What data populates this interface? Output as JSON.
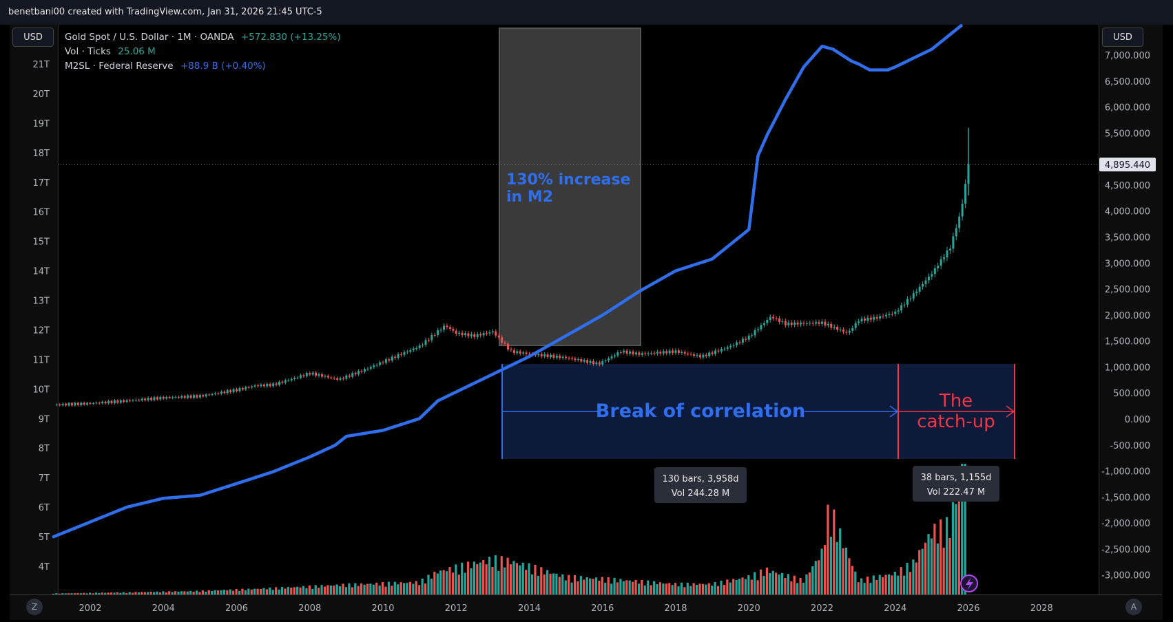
{
  "header": {
    "attribution": "benetbani00 created with TradingView.com, Jan 31, 2026 21:45 UTC-5"
  },
  "left_axis_currency": "USD",
  "right_axis_currency": "USD",
  "corner_left": "Z",
  "corner_right": "A",
  "legend": {
    "gold": {
      "name": "Gold Spot / U.S. Dollar · 1M · OANDA",
      "change": "+572.830 (+13.25%)"
    },
    "vol": {
      "name": "Vol · Ticks",
      "value": "25.06 M"
    },
    "m2": {
      "name": "M2SL · Federal Reserve",
      "change": "+88.9 B (+0.40%)"
    }
  },
  "price_label": "4,895.440",
  "annotations": {
    "m2_box_text": [
      "130% increase",
      "in M2"
    ],
    "break_label": "Break of correlation",
    "catchup_label": [
      "The",
      "catch-up"
    ],
    "measure1": {
      "line1": "130 bars, 3,958d",
      "line2": "Vol 244.28 M"
    },
    "measure2": {
      "line1": "38 bars, 1,155d",
      "line2": "Vol 222.47 M"
    }
  },
  "colors": {
    "m2_line": "#2f6fee",
    "up": "#26a69a",
    "down": "#ef5350",
    "volume_up": "#26a69a",
    "volume_down": "#ef5350",
    "break_text": "#2f6fee",
    "catchup": "#f23645",
    "m2_box": "#3a3a3a",
    "measure_box": "#0d1a3a"
  },
  "chart_data": {
    "type": "line",
    "title": "",
    "x_ticks": [
      "2002",
      "2004",
      "2006",
      "2008",
      "2010",
      "2012",
      "2014",
      "2016",
      "2018",
      "2020",
      "2022",
      "2024",
      "2026",
      "2028"
    ],
    "left_axis": {
      "label": "M2SL",
      "ticks": [
        "4T",
        "5T",
        "6T",
        "7T",
        "8T",
        "9T",
        "10T",
        "11T",
        "12T",
        "13T",
        "14T",
        "15T",
        "16T",
        "17T",
        "18T",
        "19T",
        "20T",
        "21T"
      ],
      "ylim": [
        3.5,
        22
      ]
    },
    "right_axis": {
      "label": "Gold",
      "ticks": [
        "-3,000.000",
        "-2,500.000",
        "-2,000.000",
        "-1,500.000",
        "-1,000.000",
        "-500.000",
        "0.000",
        "500.000",
        "1,000.000",
        "1,500.000",
        "2,000.000",
        "2,500.000",
        "3,000.000",
        "3,500.000",
        "4,000.000",
        "4,500.000",
        "5,500.000",
        "6,000.000",
        "6,500.000",
        "7,000.000"
      ],
      "ylim": [
        -3300,
        7200
      ]
    },
    "series": [
      {
        "name": "M2SL · Federal Reserve",
        "axis": "left",
        "x": [
          2001.0,
          2002.0,
          2003.0,
          2004.0,
          2005.0,
          2006.0,
          2007.0,
          2008.0,
          2008.7,
          2009.0,
          2010.0,
          2011.0,
          2011.5,
          2012.0,
          2013.0,
          2014.0,
          2015.0,
          2016.0,
          2017.0,
          2018.0,
          2019.0,
          2020.0,
          2020.25,
          2020.5,
          2021.0,
          2021.5,
          2022.0,
          2022.3,
          2022.8,
          2023.0,
          2023.3,
          2023.8,
          2024.0,
          2024.5,
          2025.0,
          2025.5,
          2025.8
        ],
        "y": [
          5.0,
          5.5,
          6.0,
          6.3,
          6.4,
          6.8,
          7.2,
          7.7,
          8.1,
          8.4,
          8.6,
          9.0,
          9.6,
          9.9,
          10.5,
          11.1,
          11.8,
          12.5,
          13.3,
          14.0,
          14.4,
          15.4,
          17.9,
          18.6,
          19.8,
          20.9,
          21.6,
          21.5,
          21.1,
          21.0,
          20.8,
          20.8,
          20.9,
          21.2,
          21.5,
          22.0,
          22.3
        ]
      },
      {
        "name": "Gold Spot / U.S. Dollar",
        "axis": "right",
        "x": [
          2001.0,
          2002.0,
          2003.0,
          2004.0,
          2005.0,
          2006.0,
          2006.5,
          2007.0,
          2008.0,
          2008.8,
          2009.5,
          2010.0,
          2011.0,
          2011.7,
          2012.0,
          2012.5,
          2013.0,
          2013.5,
          2014.0,
          2015.0,
          2015.9,
          2016.5,
          2017.0,
          2018.0,
          2018.7,
          2019.5,
          2020.0,
          2020.6,
          2021.0,
          2022.0,
          2022.7,
          2023.0,
          2023.5,
          2024.0,
          2024.5,
          2025.0,
          2025.5,
          2025.8,
          2026.0
        ],
        "y": [
          270,
          300,
          350,
          410,
          440,
          560,
          640,
          660,
          880,
          760,
          950,
          1100,
          1400,
          1800,
          1650,
          1600,
          1680,
          1300,
          1250,
          1180,
          1060,
          1300,
          1250,
          1300,
          1200,
          1400,
          1580,
          1970,
          1830,
          1850,
          1650,
          1900,
          1950,
          2050,
          2400,
          2800,
          3300,
          4000,
          4895
        ]
      },
      {
        "name": "Vol · Ticks",
        "x": [
          2001,
          2003,
          2005,
          2007,
          2009,
          2011,
          2011.5,
          2013,
          2013.5,
          2015,
          2016,
          2018,
          2019,
          2020,
          2020.5,
          2021.5,
          2022,
          2022.2,
          2023,
          2024,
          2024.5,
          2025,
          2025.5,
          2025.8,
          2026.0
        ],
        "y": [
          0.3,
          0.6,
          1.0,
          1.8,
          2.8,
          3.5,
          6.5,
          10.0,
          9.5,
          5.0,
          4.5,
          3.0,
          3.0,
          5.0,
          7.0,
          4.0,
          12.0,
          25.0,
          4.0,
          6.0,
          9.0,
          18.0,
          20.0,
          35.0,
          50.0
        ]
      }
    ],
    "grid": false,
    "legend": "top-left"
  }
}
